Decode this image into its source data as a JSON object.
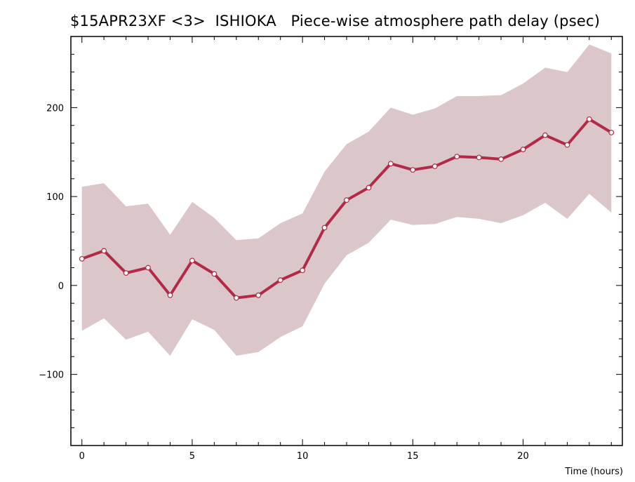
{
  "chart_data": {
    "type": "line",
    "title": "$15APR23XF <3>  ISHIOKA   Piece-wise atmosphere path delay (psec)",
    "xlabel": "Time (hours)",
    "ylabel": "",
    "xlim": [
      -0.5,
      24.5
    ],
    "ylim": [
      -180,
      280
    ],
    "xticks": [
      0,
      5,
      10,
      15,
      20
    ],
    "yticks": [
      -100,
      0,
      100,
      200
    ],
    "grid": false,
    "colors": {
      "line": "#b22a45",
      "band": "#dbc7ca",
      "axis": "#000000",
      "marker_fill": "#ffffff"
    },
    "series": [
      {
        "x": [
          0,
          1,
          2,
          3,
          4,
          5,
          6,
          7,
          8,
          9,
          10,
          11,
          12,
          13,
          14,
          15,
          16,
          17,
          18,
          19,
          20,
          21,
          22,
          23,
          24
        ],
        "values": [
          30,
          39,
          14,
          20,
          -11,
          28,
          13,
          -14,
          -11,
          6,
          17,
          65,
          96,
          110,
          137,
          130,
          134,
          145,
          144,
          142,
          153,
          169,
          158,
          187,
          172
        ],
        "upper": [
          111,
          115,
          89,
          92,
          57,
          94,
          76,
          51,
          53,
          70,
          81,
          128,
          159,
          173,
          200,
          192,
          199,
          213,
          213,
          214,
          227,
          245,
          240,
          271,
          261
        ],
        "lower": [
          -51,
          -37,
          -61,
          -52,
          -79,
          -38,
          -50,
          -79,
          -75,
          -58,
          -46,
          2,
          34,
          48,
          74,
          68,
          69,
          77,
          75,
          70,
          79,
          93,
          75,
          103,
          82
        ]
      }
    ]
  }
}
